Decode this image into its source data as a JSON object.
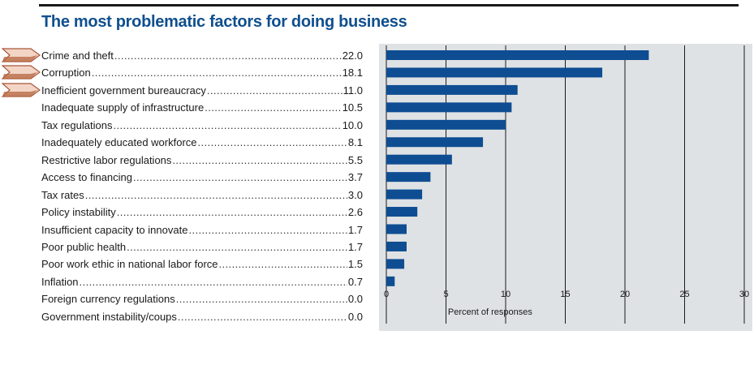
{
  "title": "The most problematic factors for doing business",
  "colors": {
    "bar": "#0e4d92",
    "title": "#0f4f8e",
    "panel": "#dfe2e5",
    "arrow": "#b5653f"
  },
  "chart_data": {
    "type": "bar",
    "orientation": "horizontal",
    "title": "The most problematic factors for doing business",
    "xlabel": "Percent of responses",
    "ylabel": "",
    "xlim": [
      0,
      30
    ],
    "xticks": [
      0,
      5,
      10,
      15,
      20,
      25,
      30
    ],
    "grid": true,
    "categories": [
      "Crime and theft",
      "Corruption",
      "Inefficient government bureaucracy",
      "Inadequate supply of infrastructure",
      "Tax regulations",
      "Inadequately educated workforce",
      "Restrictive labor regulations",
      "Access to financing",
      "Tax rates",
      "Policy instability",
      "Insufficient capacity to innovate",
      "Poor public health",
      "Poor work ethic in national labor force",
      "Inflation",
      "Foreign currency regulations",
      "Government instability/coups"
    ],
    "value_labels": [
      "22.0",
      "18.1",
      "11.0",
      "10.5",
      "10.0",
      "8.1",
      "5.5",
      "3.7",
      "3.0",
      "2.6",
      "1.7",
      "1.7",
      "1.5",
      "0.7",
      "0.0",
      "0.0"
    ],
    "values": [
      22.0,
      18.1,
      11.0,
      10.5,
      10.0,
      8.1,
      5.5,
      3.7,
      3.0,
      2.6,
      1.7,
      1.7,
      1.5,
      0.7,
      0.0,
      0.0
    ],
    "highlighted": [
      "Crime and theft",
      "Corruption",
      "Inefficient government bureaucracy"
    ]
  }
}
